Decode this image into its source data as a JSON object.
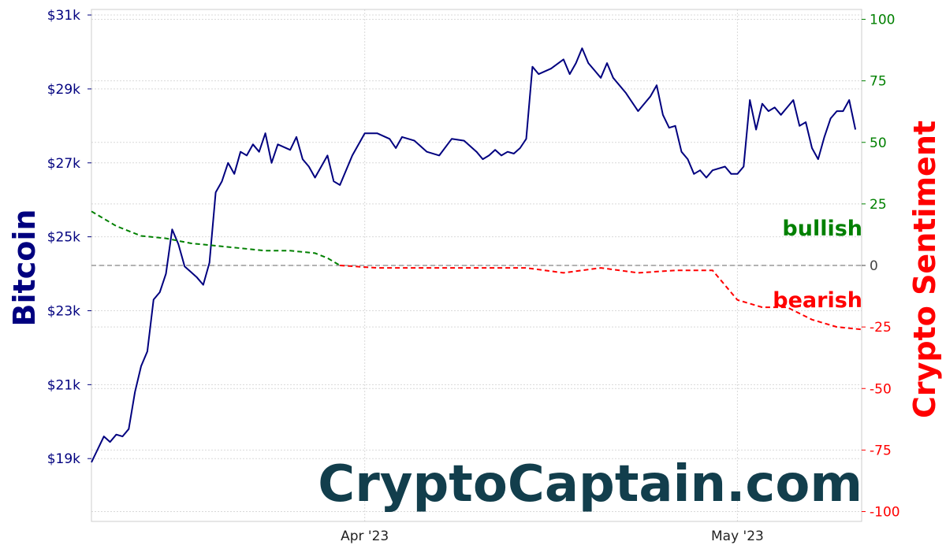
{
  "chart_data": {
    "type": "line",
    "watermark": "CryptoCaptain.com",
    "colors": {
      "bitcoin": "#00007f",
      "bullish": "#008000",
      "bearish": "#ff0000",
      "zero_line": "#999999",
      "grid": "#d9d9d9",
      "watermark": "#123e4c"
    },
    "y_left": {
      "label": "Bitcoin",
      "ylim": [
        17300,
        31150
      ],
      "ticks": [
        19000,
        21000,
        23000,
        25000,
        27000,
        29000,
        31000
      ],
      "tick_labels": [
        "$19k",
        "$21k",
        "$23k",
        "$25k",
        "$27k",
        "$29k",
        "$31k"
      ]
    },
    "y_right": {
      "label": "Crypto Sentiment",
      "ylim": [
        -104,
        104
      ],
      "ticks": [
        -100,
        -75,
        -50,
        -25,
        0,
        25,
        50,
        75,
        100
      ],
      "tick_labels": [
        "-100",
        "-75",
        "-50",
        "-25",
        "0",
        "25",
        "50",
        "75",
        "100"
      ]
    },
    "x_axis": {
      "xlim": [
        "2023-03-10",
        "2023-05-11"
      ],
      "ticks": [
        "2023-04-01",
        "2023-05-01"
      ],
      "tick_labels": [
        "Apr '23",
        "May '23"
      ]
    },
    "grid": true,
    "annotations": {
      "bullish": "bullish",
      "bearish": "bearish"
    },
    "series": [
      {
        "axis": "left",
        "x": [
          "2023-03-10",
          "2023-03-10T12",
          "2023-03-11",
          "2023-03-11T12",
          "2023-03-12",
          "2023-03-12T12",
          "2023-03-13",
          "2023-03-13T12",
          "2023-03-14",
          "2023-03-14T12",
          "2023-03-15",
          "2023-03-15T12",
          "2023-03-16",
          "2023-03-16T12",
          "2023-03-17",
          "2023-03-17T12",
          "2023-03-18",
          "2023-03-18T12",
          "2023-03-19",
          "2023-03-19T12",
          "2023-03-20",
          "2023-03-20T12",
          "2023-03-21",
          "2023-03-21T12",
          "2023-03-22",
          "2023-03-22T12",
          "2023-03-23",
          "2023-03-23T12",
          "2023-03-24",
          "2023-03-24T12",
          "2023-03-25",
          "2023-03-26",
          "2023-03-26T12",
          "2023-03-27",
          "2023-03-27T12",
          "2023-03-28",
          "2023-03-28T12",
          "2023-03-29",
          "2023-03-29T12",
          "2023-03-30",
          "2023-03-31",
          "2023-04-01",
          "2023-04-02",
          "2023-04-03",
          "2023-04-03T12",
          "2023-04-04",
          "2023-04-05",
          "2023-04-06",
          "2023-04-07",
          "2023-04-08",
          "2023-04-09",
          "2023-04-10",
          "2023-04-10T12",
          "2023-04-11",
          "2023-04-11T12",
          "2023-04-12",
          "2023-04-12T12",
          "2023-04-13",
          "2023-04-13T12",
          "2023-04-14",
          "2023-04-14T12",
          "2023-04-15",
          "2023-04-16",
          "2023-04-17",
          "2023-04-17T12",
          "2023-04-18",
          "2023-04-18T12",
          "2023-04-19",
          "2023-04-19T12",
          "2023-04-20",
          "2023-04-20T12",
          "2023-04-21",
          "2023-04-22",
          "2023-04-23",
          "2023-04-24",
          "2023-04-24T12",
          "2023-04-25",
          "2023-04-25T12",
          "2023-04-26",
          "2023-04-26T12",
          "2023-04-27",
          "2023-04-27T12",
          "2023-04-28",
          "2023-04-28T12",
          "2023-04-29",
          "2023-04-30",
          "2023-04-30T12",
          "2023-05-01",
          "2023-05-01T12",
          "2023-05-02",
          "2023-05-02T12",
          "2023-05-03",
          "2023-05-03T12",
          "2023-05-04",
          "2023-05-04T12",
          "2023-05-05",
          "2023-05-05T12",
          "2023-05-06",
          "2023-05-06T12",
          "2023-05-07",
          "2023-05-07T12",
          "2023-05-08",
          "2023-05-08T12",
          "2023-05-09",
          "2023-05-09T12",
          "2023-05-10",
          "2023-05-10T12"
        ],
        "y": [
          18900,
          19250,
          19600,
          19450,
          19650,
          19600,
          19800,
          20800,
          21500,
          21900,
          23300,
          23500,
          24000,
          25200,
          24800,
          24200,
          24050,
          23900,
          23700,
          24300,
          26200,
          26500,
          27000,
          26700,
          27300,
          27200,
          27500,
          27300,
          27800,
          27000,
          27500,
          27350,
          27700,
          27100,
          26900,
          26600,
          26900,
          27200,
          26500,
          26400,
          27200,
          27800,
          27800,
          27650,
          27400,
          27700,
          27600,
          27300,
          27200,
          27650,
          27600,
          27300,
          27100,
          27200,
          27350,
          27200,
          27300,
          27250,
          27400,
          27650,
          29600,
          29400,
          29550,
          29800,
          29400,
          29700,
          30100,
          29700,
          29500,
          29300,
          29700,
          29300,
          28900,
          28400,
          28800,
          29100,
          28300,
          27950,
          28000,
          27300,
          27100,
          26700,
          26800,
          26600,
          26800,
          26900,
          26700,
          26700,
          26900,
          28700,
          27900,
          28600,
          28400,
          28500,
          28300,
          28500,
          28700,
          28000,
          28100,
          27400,
          27100,
          27700,
          28200,
          28400,
          28400,
          28700,
          27900
        ]
      },
      {
        "axis": "right",
        "x": [
          "2023-03-10",
          "2023-03-12",
          "2023-03-14",
          "2023-03-16",
          "2023-03-18",
          "2023-03-20",
          "2023-03-22",
          "2023-03-24",
          "2023-03-26",
          "2023-03-28",
          "2023-03-29",
          "2023-03-30",
          "2023-04-02",
          "2023-04-05",
          "2023-04-08",
          "2023-04-11",
          "2023-04-14",
          "2023-04-17",
          "2023-04-20",
          "2023-04-23",
          "2023-04-26",
          "2023-04-29",
          "2023-05-01",
          "2023-05-03",
          "2023-05-05",
          "2023-05-07",
          "2023-05-09",
          "2023-05-11"
        ],
        "y": [
          22,
          16,
          12,
          11,
          9,
          8,
          7,
          6,
          6,
          5,
          3,
          0,
          -1,
          -1,
          -1,
          -1,
          -1,
          -3,
          -1,
          -3,
          -2,
          -2,
          -14,
          -17,
          -17,
          -22,
          -25,
          -26
        ]
      }
    ]
  }
}
